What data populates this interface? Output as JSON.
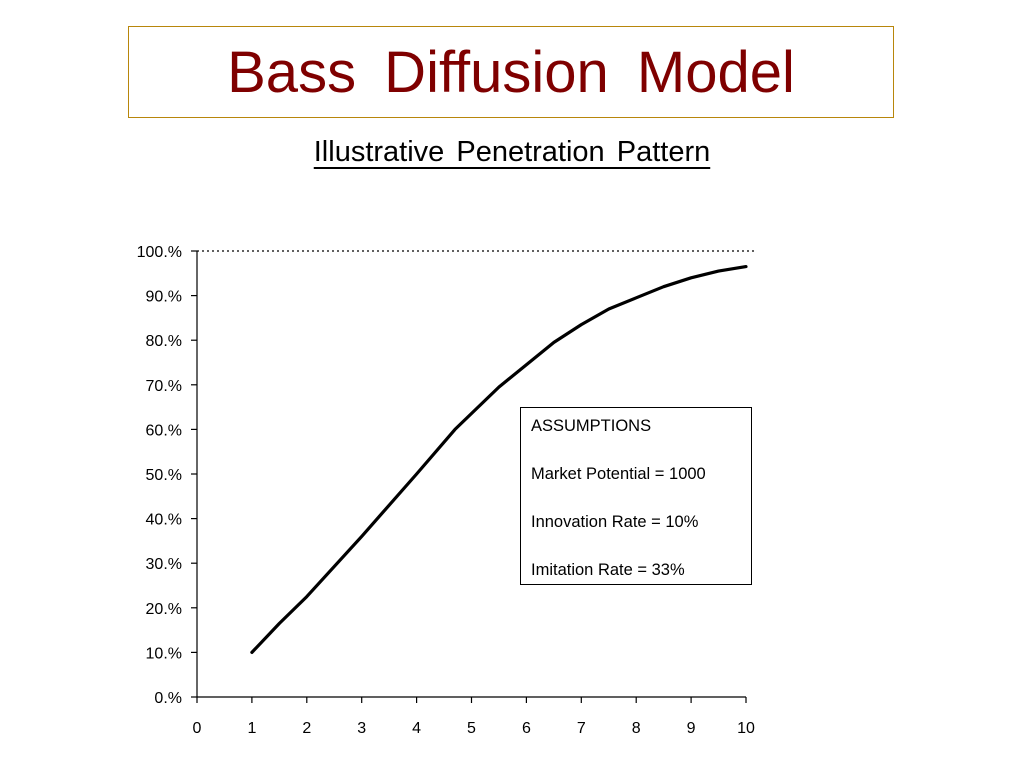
{
  "title": "Bass  Diffusion  Model",
  "subtitle": "Illustrative  Penetration  Pattern",
  "colors": {
    "title": "#7f0000",
    "title_border": "#b8860b",
    "line": "#000000"
  },
  "assumptions": {
    "heading": "ASSUMPTIONS",
    "items": [
      "Market Potential = 1000",
      "Innovation Rate = 10%",
      "Imitation Rate = 33%"
    ]
  },
  "chart_data": {
    "type": "line",
    "title": "Illustrative  Penetration  Pattern",
    "xlabel": "",
    "ylabel": "",
    "xlim": [
      0,
      10
    ],
    "ylim": [
      0,
      100
    ],
    "x_ticks": [
      "0",
      "1",
      "2",
      "3",
      "4",
      "5",
      "6",
      "7",
      "8",
      "9",
      "10"
    ],
    "y_ticks": [
      "0.%",
      "10.%",
      "20.%",
      "30.%",
      "40.%",
      "50.%",
      "60.%",
      "70.%",
      "80.%",
      "90.%",
      "100.%"
    ],
    "reference_line": {
      "y": 100,
      "style": "dotted"
    },
    "grid": false,
    "series": [
      {
        "x": [
          1,
          1.5,
          2,
          3,
          4,
          4.7,
          5.5,
          6,
          6.5,
          7,
          7.5,
          8,
          8.5,
          9,
          9.5,
          10
        ],
        "values": [
          10,
          16.5,
          22.5,
          36,
          50,
          60,
          69.5,
          74.5,
          79.5,
          83.5,
          87,
          89.5,
          92,
          94,
          95.5,
          96.5
        ]
      }
    ]
  }
}
